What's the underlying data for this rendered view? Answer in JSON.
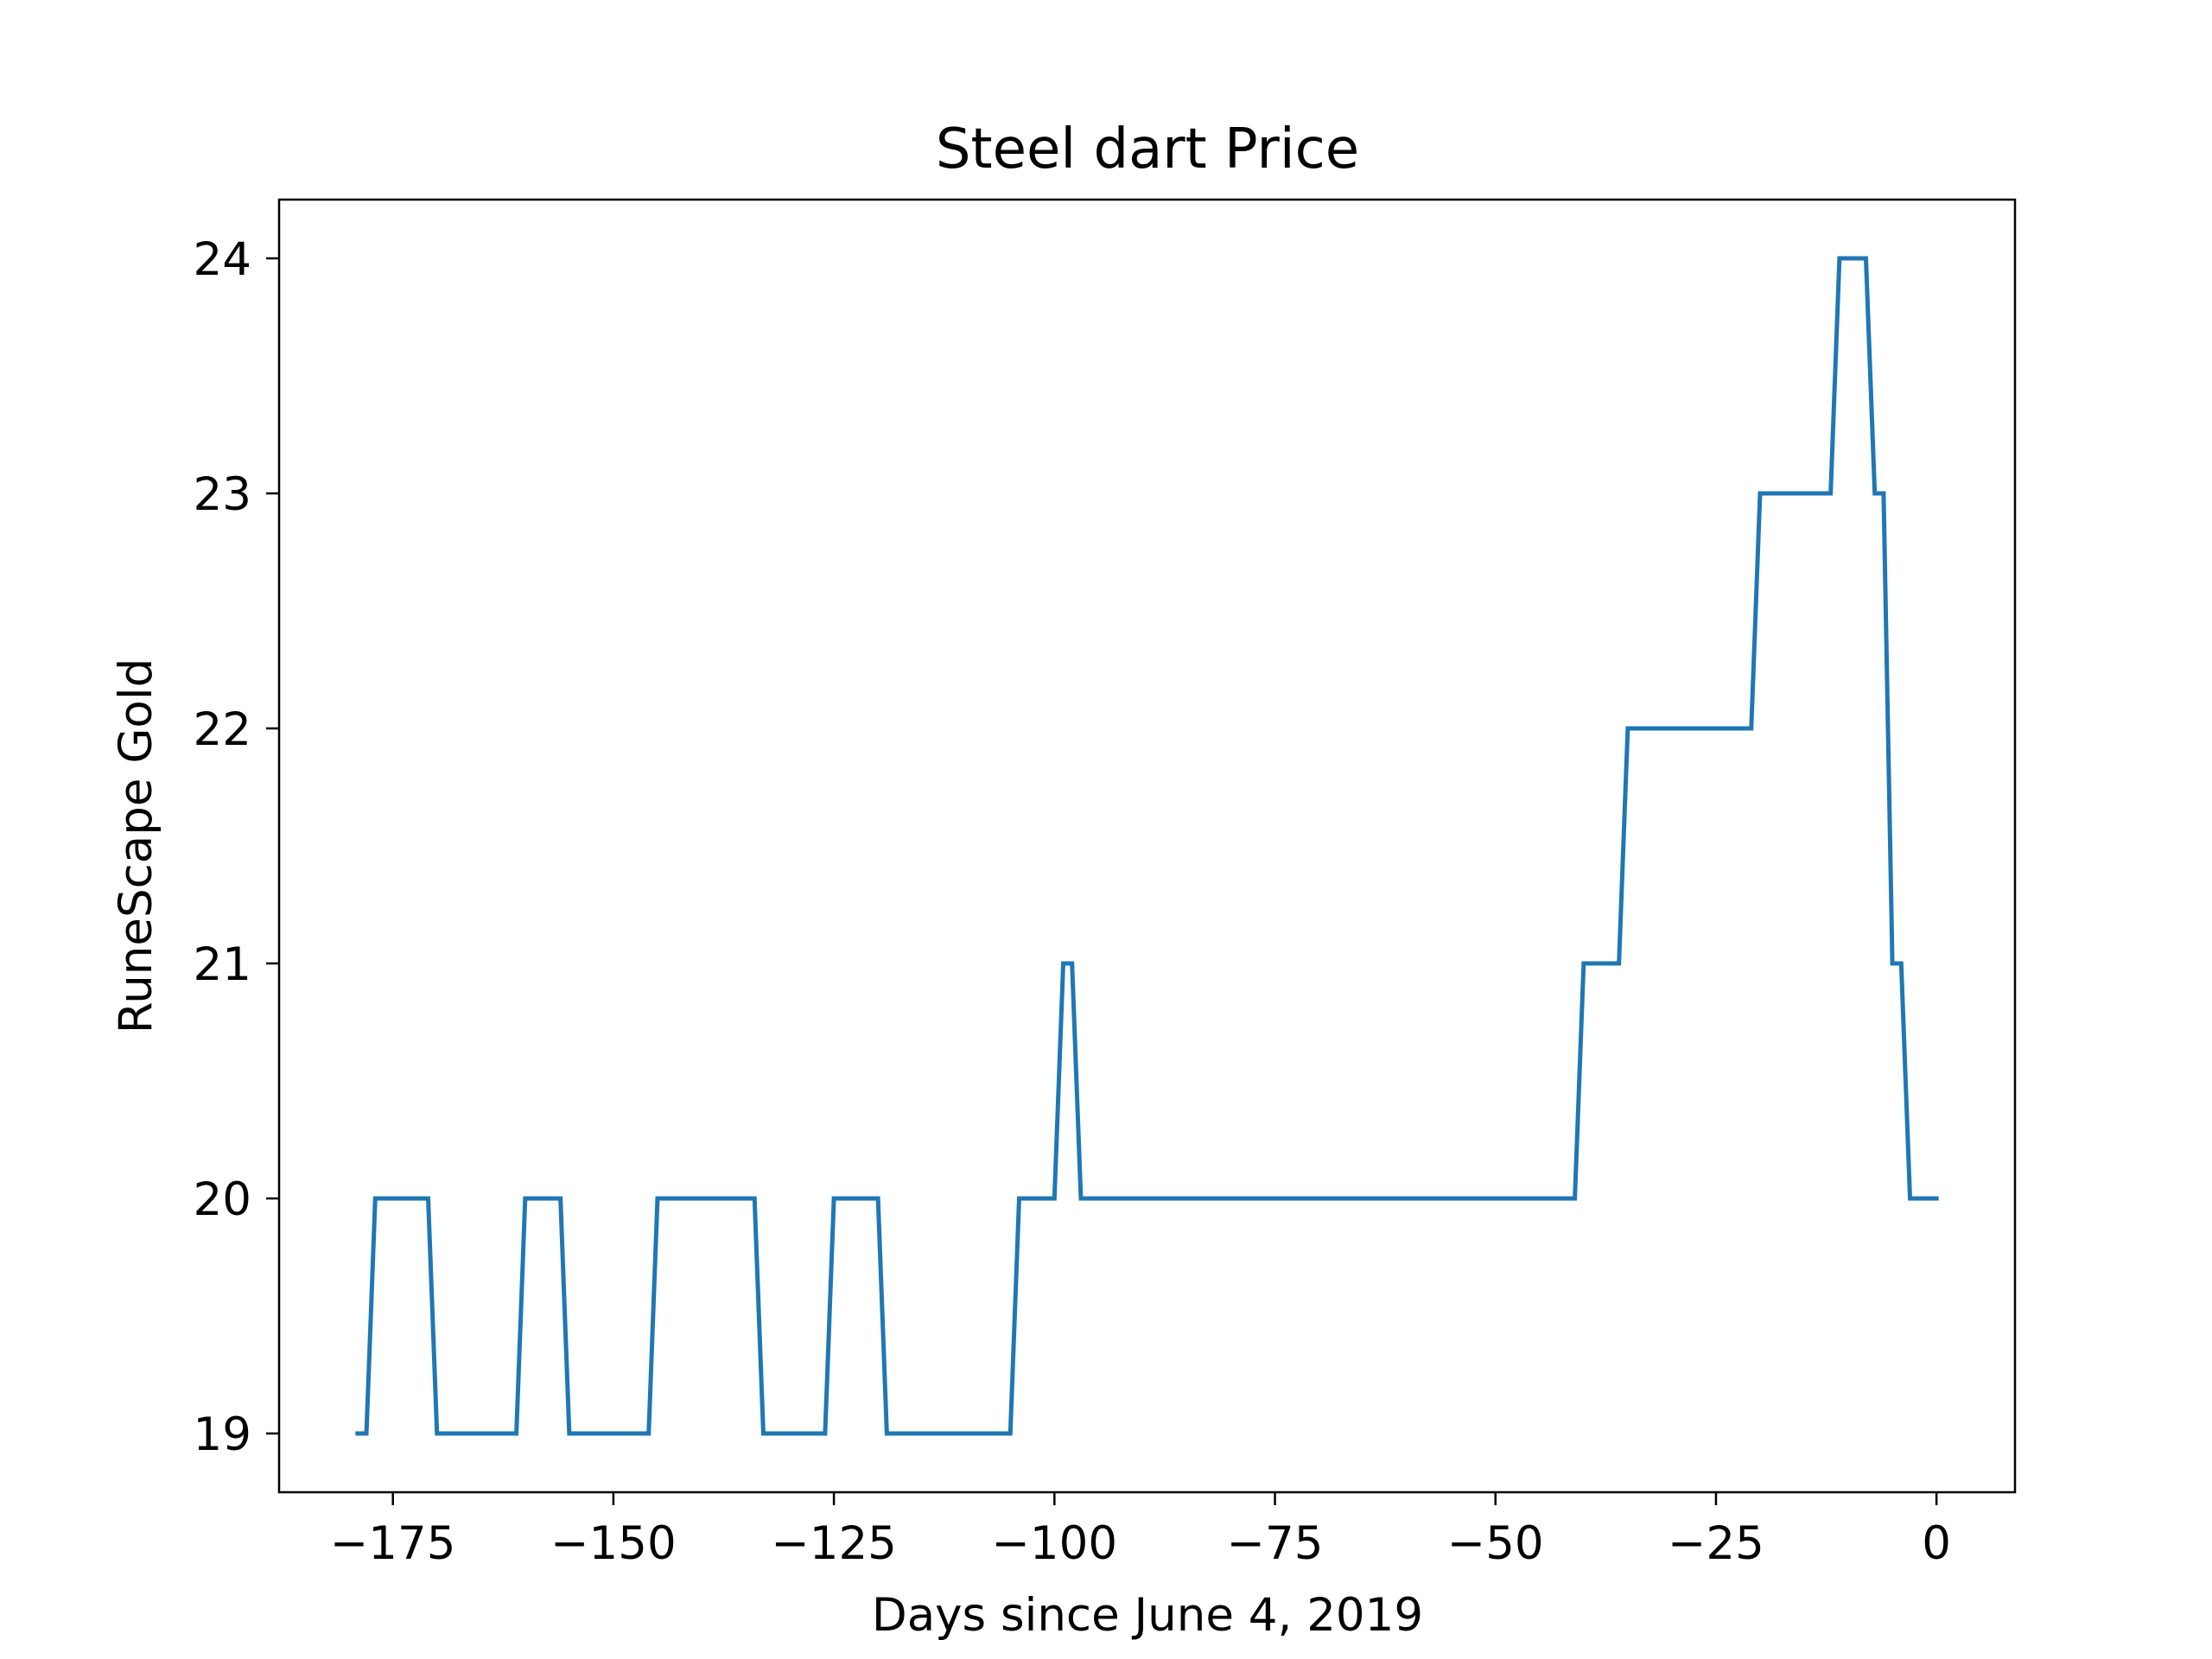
{
  "chart_data": {
    "type": "line",
    "title": "Steel dart Price",
    "xlabel": "Days since June 4, 2019",
    "ylabel": "RuneScape Gold",
    "xlim": [
      -187.9,
      8.9
    ],
    "ylim": [
      18.75,
      24.25
    ],
    "xticks": [
      -175,
      -150,
      -125,
      -100,
      -75,
      -50,
      -25,
      0
    ],
    "xtick_labels": [
      "−175",
      "−150",
      "−125",
      "−100",
      "−75",
      "−50",
      "−25",
      "0"
    ],
    "yticks": [
      19,
      20,
      21,
      22,
      23,
      24
    ],
    "ytick_labels": [
      "19",
      "20",
      "21",
      "22",
      "23",
      "24"
    ],
    "grid": false,
    "series": [
      {
        "color": "#1f77b4",
        "x": [
          -179,
          -178,
          -177,
          -171,
          -170,
          -161,
          -160,
          -156,
          -155,
          -146,
          -145,
          -134,
          -133,
          -126,
          -125,
          -120,
          -119,
          -105,
          -104,
          -100,
          -99,
          -98,
          -97,
          -41,
          -40,
          -36,
          -35,
          -21,
          -20,
          -12,
          -11,
          -8,
          -7,
          -6,
          -5,
          -4,
          -3,
          -2,
          -1,
          0
        ],
        "y": [
          19,
          19,
          20,
          20,
          19,
          19,
          20,
          20,
          19,
          19,
          20,
          20,
          19,
          19,
          20,
          20,
          19,
          19,
          20,
          20,
          21,
          21,
          20,
          20,
          21,
          21,
          22,
          22,
          23,
          23,
          24,
          24,
          23,
          23,
          21,
          21,
          20,
          20,
          20,
          20
        ]
      }
    ]
  }
}
